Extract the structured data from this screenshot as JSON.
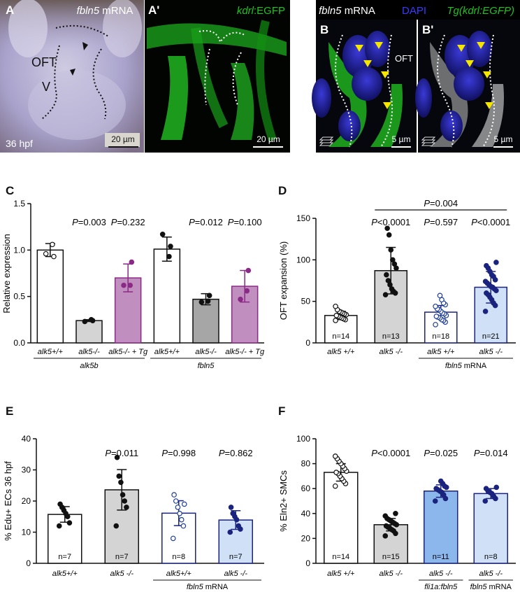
{
  "colors": {
    "white": "#ffffff",
    "light_gray": "#d4d4d4",
    "dark_gray": "#a6a6a6",
    "magenta": "#c08fbf",
    "magenta_edge": "#8b2a86",
    "navy": "#1a237e",
    "light_blue": "#cfe0f7",
    "mid_blue": "#8cb7ec",
    "blue_edge": "#1f3f99",
    "micro_green": "#1fc21f",
    "micro_blue": "#2a2ad0",
    "arrow_yellow": "#f5e600"
  },
  "micrographs": [
    {
      "panel": "A",
      "label": "A",
      "title_italic": "fbln5",
      "title_rest": " mRNA",
      "labels": [
        "OFT",
        "V"
      ],
      "stage": "36 hpf",
      "scale": "20 µm"
    },
    {
      "panel": "A'",
      "label": "A'",
      "title_italic": "kdrl",
      "title_rest": ":EGFP",
      "scale": "20 µm"
    },
    {
      "panel": "B",
      "label": "B",
      "header_italic": "fbln5",
      "header_rest": " mRNA",
      "header_dapi": "DAPI",
      "header_tg": "Tg(kdrl:EGFP)",
      "labels": [
        "OFT"
      ],
      "scale": "5 µm"
    },
    {
      "panel": "B'",
      "label": "B'",
      "scale": "5 µm"
    }
  ],
  "chart_data": [
    {
      "panel": "C",
      "type": "bar",
      "ylabel": "Relative expression",
      "ylim": [
        0,
        1.5
      ],
      "yticks": [
        "0.0",
        "0.5",
        "1.0",
        "1.5"
      ],
      "categories": [
        "alk5+/+",
        "alk5-/-",
        "alk5-/- + Tg",
        "alk5+/+",
        "alk5-/-",
        "alk5-/- + Tg"
      ],
      "values": [
        1.0,
        0.24,
        0.7,
        1.01,
        0.47,
        0.61
      ],
      "err": [
        0.07,
        0.01,
        0.15,
        0.13,
        0.06,
        0.17
      ],
      "points": [
        [
          0.96,
          0.93,
          1.06
        ],
        [
          0.23,
          0.24,
          0.25
        ],
        [
          0.62,
          0.87,
          0.62
        ],
        [
          1.17,
          1.04,
          0.93
        ],
        [
          0.44,
          0.51,
          0.45
        ],
        [
          0.47,
          0.78,
          0.56
        ]
      ],
      "pvalues": [
        "",
        "P=0.003",
        "P=0.232",
        "",
        "P=0.012",
        "P=0.100"
      ],
      "groups": [
        {
          "label": "alk5b",
          "from": 0,
          "to": 2
        },
        {
          "label": "fbln5",
          "from": 3,
          "to": 5
        }
      ]
    },
    {
      "panel": "D",
      "type": "bar",
      "ylabel": "OFT expansion (%)",
      "ylim": [
        0,
        150
      ],
      "yticks": [
        "0",
        "50",
        "100",
        "150"
      ],
      "categories": [
        "alk5 +/+",
        "alk5 -/-",
        "alk5 +/+",
        "alk5 -/-"
      ],
      "values": [
        33,
        87,
        37,
        67
      ],
      "err": [
        5,
        28,
        8,
        19
      ],
      "n": [
        "n=14",
        "n=13",
        "n=18",
        "n=21"
      ],
      "pvalues": [
        "",
        "P<0.0001",
        "P=0.597",
        "P<0.0001"
      ],
      "bracket": {
        "from": 1,
        "to": 3,
        "label": "P=0.004"
      },
      "groups": [
        {
          "label_italic": "fbln5",
          "label_rest": " mRNA",
          "from": 2,
          "to": 3
        }
      ],
      "points": [
        [
          27,
          28,
          29,
          30,
          31,
          32,
          33,
          34,
          35,
          36,
          37,
          38,
          40,
          44
        ],
        [
          58,
          60,
          62,
          65,
          70,
          75,
          82,
          90,
          95,
          100,
          112,
          130,
          138
        ],
        [
          22,
          25,
          27,
          28,
          30,
          31,
          32,
          33,
          35,
          36,
          38,
          40,
          41,
          44,
          46,
          48,
          52,
          57
        ],
        [
          38,
          45,
          48,
          52,
          55,
          58,
          60,
          63,
          65,
          67,
          68,
          70,
          72,
          74,
          76,
          80,
          82,
          86,
          90,
          93,
          97
        ]
      ]
    },
    {
      "panel": "E",
      "type": "bar",
      "ylabel": "% Edu+ ECs 36 hpf",
      "ylim": [
        0,
        40
      ],
      "yticks": [
        "0",
        "10",
        "20",
        "30",
        "40"
      ],
      "categories": [
        "alk5+/+",
        "alk5 -/-",
        "alk5+/+",
        "alk5 -/-"
      ],
      "values": [
        15.7,
        23.6,
        16.1,
        13.9
      ],
      "err": [
        2.5,
        6.5,
        4.0,
        3.0
      ],
      "n": [
        "n=7",
        "n=7",
        "n=8",
        "n=7"
      ],
      "pvalues": [
        "",
        "P=0.011",
        "P=0.998",
        "P=0.862"
      ],
      "groups": [
        {
          "label_italic": "fbln5",
          "label_rest": " mRNA",
          "from": 2,
          "to": 3
        }
      ],
      "points": [
        [
          12,
          13,
          15,
          16,
          17,
          18,
          19
        ],
        [
          12,
          18,
          20,
          22,
          26,
          28,
          34
        ],
        [
          8,
          12,
          14,
          16,
          18,
          20,
          22,
          19
        ],
        [
          10,
          11,
          12,
          14,
          15,
          16,
          18
        ]
      ]
    },
    {
      "panel": "F",
      "type": "bar",
      "ylabel": "% Eln2+ SMCs",
      "ylim": [
        0,
        100
      ],
      "yticks": [
        "0",
        "20",
        "40",
        "60",
        "80",
        "100"
      ],
      "categories": [
        "alk5 +/+",
        "alk5 -/-",
        "alk5 -/-",
        "alk5 -/-"
      ],
      "values": [
        73,
        31,
        58,
        56
      ],
      "err": [
        7,
        5,
        5,
        4
      ],
      "n": [
        "n=14",
        "n=15",
        "n=11",
        "n=8"
      ],
      "pvalues": [
        "",
        "P<0.0001",
        "P=0.025",
        "P=0.014"
      ],
      "groups": [
        {
          "label_italic": "fli1a:fbln5",
          "label_rest": "",
          "from": 2,
          "to": 2
        },
        {
          "label_italic": "fbln5",
          "label_rest": " mRNA",
          "from": 3,
          "to": 3
        }
      ],
      "points": [
        [
          62,
          64,
          66,
          68,
          70,
          72,
          73,
          74,
          76,
          78,
          80,
          82,
          84,
          86
        ],
        [
          22,
          24,
          26,
          27,
          28,
          29,
          30,
          31,
          32,
          33,
          34,
          35,
          36,
          38,
          40
        ],
        [
          50,
          52,
          55,
          57,
          58,
          59,
          60,
          61,
          62,
          64,
          66
        ],
        [
          50,
          52,
          54,
          56,
          57,
          58,
          60,
          61
        ]
      ]
    }
  ]
}
